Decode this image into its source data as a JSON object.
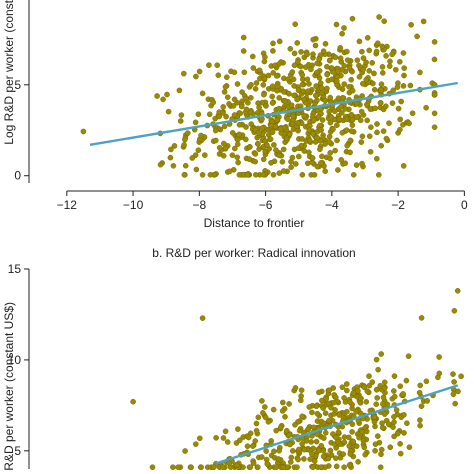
{
  "colors": {
    "points": "#9a8a00",
    "point_edge": "#6b6000",
    "fit_line": "#4ba3c7",
    "axis": "#222222",
    "text": "#222222"
  },
  "chart_data": [
    {
      "type": "scatter",
      "title": "",
      "xlabel": "Distance to frontier",
      "ylabel": "Log R&D per worker (constant",
      "xlim": [
        -12.9,
        0.2
      ],
      "ylim": [
        -0.4,
        10.6
      ],
      "x_ticks": [
        -12,
        -10,
        -8,
        -6,
        -4,
        -2,
        0
      ],
      "x_tick_labels": [
        "−12",
        "−10",
        "−8",
        "−6",
        "−4",
        "−2",
        "0"
      ],
      "y_ticks": [
        0,
        5
      ],
      "y_tick_labels": [
        "0",
        "5"
      ],
      "grid": false,
      "fit_line": {
        "x": [
          -11.3,
          -0.2
        ],
        "y": [
          1.7,
          5.1
        ]
      },
      "point_cloud": {
        "count": 780,
        "x_mean": -4.9,
        "x_sd": 1.7,
        "x_min": -11.5,
        "x_max": -0.9,
        "y_intercept": 5.1,
        "y_slope": 0.31,
        "y_sd": 1.9,
        "y_min": 0.05,
        "y_max": 10.5
      }
    },
    {
      "type": "scatter",
      "title": "b. R&D per worker: Radical innovation",
      "xlabel": "",
      "ylabel": "Log R&D per worker (constant US$)",
      "ylabel_visible": ") R&D per worker (constant US$)",
      "xlim": [
        -12.9,
        0.2
      ],
      "ylim": [
        4.0,
        15.0
      ],
      "y_ticks": [
        5,
        10,
        15
      ],
      "y_tick_labels": [
        "5",
        "10",
        "15"
      ],
      "grid": false,
      "fit_line": {
        "x": [
          -7.5,
          -0.2
        ],
        "y": [
          4.3,
          8.6
        ]
      },
      "point_cloud": {
        "count": 470,
        "x_mean": -4.1,
        "x_sd": 1.7,
        "x_min": -10.5,
        "x_max": -0.1,
        "y_intercept": 8.6,
        "y_slope": 0.58,
        "y_sd": 1.3,
        "y_min": 4.1,
        "y_max": 13.9
      },
      "notable_points": [
        {
          "x": -10.0,
          "y": 7.7
        },
        {
          "x": -7.9,
          "y": 12.3
        },
        {
          "x": -0.2,
          "y": 13.8
        },
        {
          "x": -0.3,
          "y": 12.7
        }
      ]
    }
  ]
}
